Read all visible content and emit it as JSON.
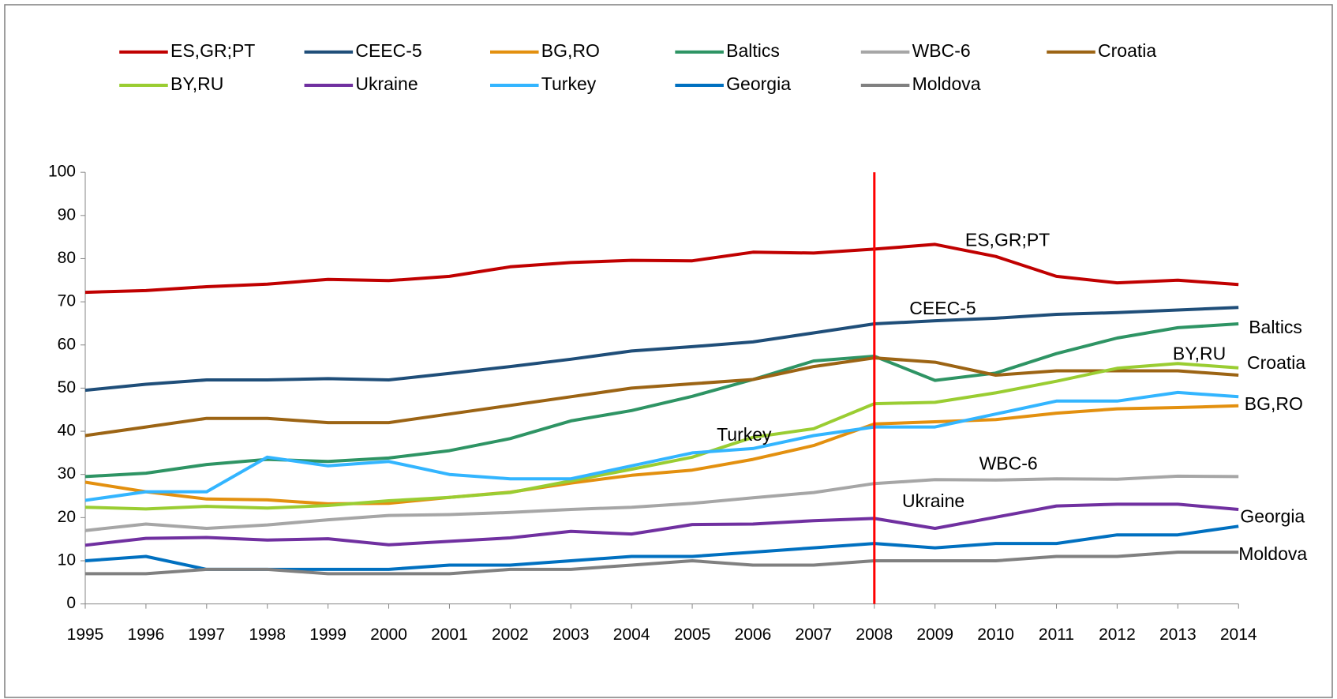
{
  "chart_data": {
    "type": "line",
    "categories": [
      "1995",
      "1996",
      "1997",
      "1998",
      "1999",
      "2000",
      "2001",
      "2002",
      "2003",
      "2004",
      "2005",
      "2006",
      "2007",
      "2008",
      "2009",
      "2010",
      "2011",
      "2012",
      "2013",
      "2014"
    ],
    "series": [
      {
        "name": "ES,GR;PT",
        "color": "#c00000",
        "values": [
          72.2,
          72.6,
          73.5,
          74.1,
          75.2,
          74.9,
          75.9,
          78.1,
          79.1,
          79.6,
          79.5,
          81.5,
          81.3,
          82.2,
          83.3,
          80.5,
          75.9,
          74.4,
          75.0,
          74.0
        ]
      },
      {
        "name": "CEEC-5",
        "color": "#1f4e79",
        "values": [
          49.5,
          50.9,
          51.9,
          51.9,
          52.2,
          51.9,
          53.4,
          55.0,
          56.7,
          58.6,
          59.6,
          60.7,
          62.8,
          64.9,
          65.6,
          66.2,
          67.1,
          67.5,
          68.1,
          68.7
        ]
      },
      {
        "name": "BG,RO",
        "color": "#e3900f",
        "values": [
          28.2,
          26.0,
          24.3,
          24.1,
          23.2,
          23.3,
          24.7,
          25.9,
          28.0,
          29.8,
          31.0,
          33.5,
          36.7,
          41.7,
          42.2,
          42.7,
          44.2,
          45.2,
          45.5,
          45.9
        ]
      },
      {
        "name": "Baltics",
        "color": "#2e9464",
        "values": [
          29.5,
          30.3,
          32.3,
          33.5,
          33.0,
          33.8,
          35.5,
          38.3,
          42.4,
          44.8,
          48.1,
          52.0,
          56.3,
          57.4,
          51.8,
          53.5,
          58.0,
          61.6,
          64.0,
          64.9
        ]
      },
      {
        "name": "WBC-6",
        "color": "#a6a6a6",
        "values": [
          17.0,
          18.5,
          17.5,
          18.3,
          19.5,
          20.5,
          20.7,
          21.2,
          21.9,
          22.4,
          23.3,
          24.6,
          25.8,
          27.9,
          28.8,
          28.7,
          29.0,
          28.9,
          29.6,
          29.5
        ]
      },
      {
        "name": "Croatia",
        "color": "#9c6414",
        "values": [
          39,
          41,
          43,
          43,
          42,
          42,
          44,
          46,
          48,
          50,
          51,
          52,
          55,
          57,
          56,
          53,
          54,
          54,
          54,
          53
        ]
      },
      {
        "name": "BY,RU",
        "color": "#9acd32",
        "values": [
          22.4,
          22.0,
          22.6,
          22.2,
          22.8,
          23.9,
          24.7,
          25.8,
          28.5,
          31.2,
          34.0,
          38.6,
          40.6,
          46.4,
          46.7,
          48.9,
          51.6,
          54.6,
          55.7,
          54.7
        ]
      },
      {
        "name": "Ukraine",
        "color": "#7030a0",
        "values": [
          13.6,
          15.2,
          15.4,
          14.8,
          15.1,
          13.7,
          14.5,
          15.3,
          16.8,
          16.2,
          18.4,
          18.5,
          19.3,
          19.8,
          17.5,
          20.1,
          22.7,
          23.1,
          23.1,
          21.9
        ]
      },
      {
        "name": "Turkey",
        "color": "#33b5ff",
        "values": [
          24,
          26,
          26,
          34,
          32,
          33,
          30,
          29,
          29,
          32,
          35,
          36,
          39,
          41,
          41,
          44,
          47,
          47,
          49,
          48
        ]
      },
      {
        "name": "Georgia",
        "color": "#0070c0",
        "values": [
          10,
          11,
          8,
          8,
          8,
          8,
          9,
          9,
          10,
          11,
          11,
          12,
          13,
          14,
          13,
          14,
          14,
          16,
          16,
          18
        ]
      },
      {
        "name": "Moldova",
        "color": "#808080",
        "values": [
          7,
          7,
          8,
          8,
          7,
          7,
          7,
          8,
          8,
          9,
          10,
          9,
          9,
          10,
          10,
          10,
          11,
          11,
          12,
          12
        ]
      }
    ],
    "annotations": [
      "ES,GR;PT",
      "CEEC-5",
      "Baltics",
      "BY,RU",
      "Croatia",
      "Turkey",
      "BG,RO",
      "WBC-6",
      "Ukraine",
      "Georgia",
      "Moldova"
    ],
    "reference_line": {
      "x": "2008",
      "color": "#ff0000"
    },
    "ylim": [
      0,
      100
    ],
    "yticks": [
      0,
      10,
      20,
      30,
      40,
      50,
      60,
      70,
      80,
      90,
      100
    ],
    "grid": false,
    "legend": "top"
  }
}
